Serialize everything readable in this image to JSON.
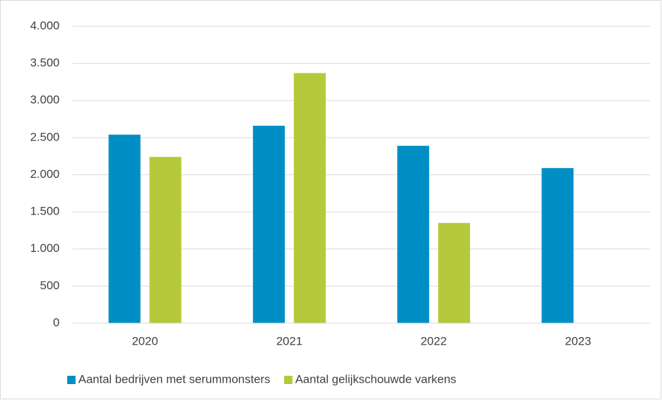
{
  "chart_data": {
    "type": "bar",
    "categories": [
      "2020",
      "2021",
      "2022",
      "2023"
    ],
    "series": [
      {
        "name": "Aantal bedrijven met serummonsters",
        "color": "#008fc5",
        "values": [
          2540,
          2660,
          2390,
          2090
        ]
      },
      {
        "name": "Aantal gelijkschouwde varkens",
        "color": "#b6c93a",
        "values": [
          2240,
          3370,
          1350,
          null
        ]
      }
    ],
    "ylim": [
      0,
      4000
    ],
    "yticks": [
      0,
      500,
      {
        "value": 1000,
        "label": "1.000"
      },
      {
        "value": 1500,
        "label": "1.500"
      },
      {
        "value": 2000,
        "label": "2.000"
      },
      {
        "value": 2500,
        "label": "2.500"
      },
      {
        "value": 3000,
        "label": "3.000"
      },
      {
        "value": 3500,
        "label": "3.500"
      },
      {
        "value": 4000,
        "label": "4.000"
      }
    ],
    "grid": true,
    "legend": "bottom"
  }
}
